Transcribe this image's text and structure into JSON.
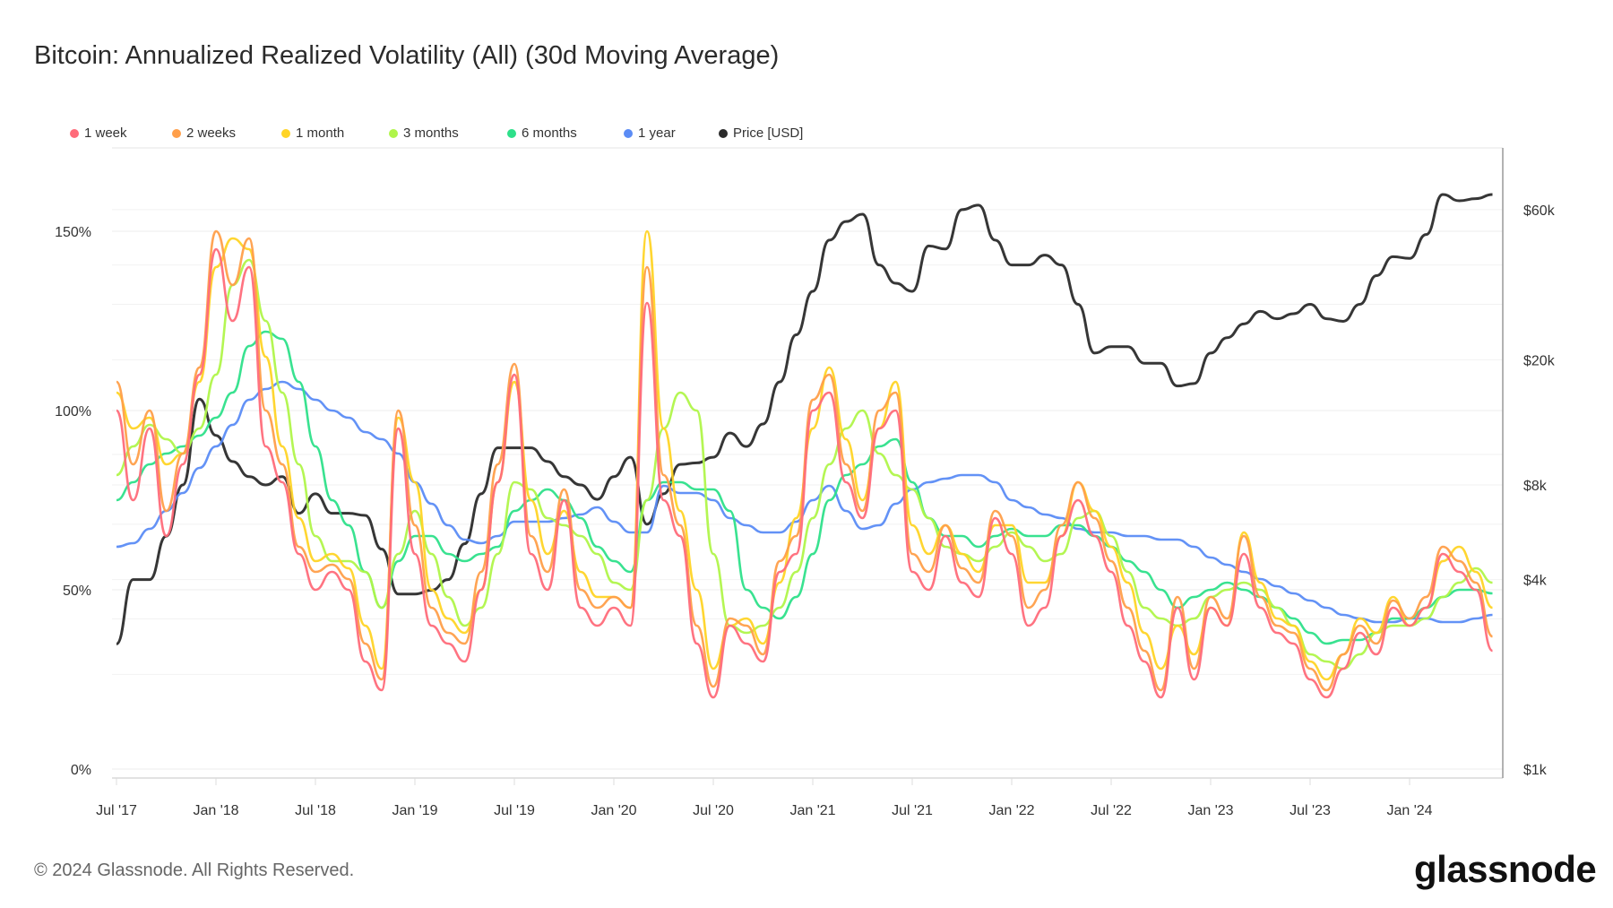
{
  "title": "Bitcoin: Annualized Realized Volatility (All) (30d Moving Average)",
  "footer": "© 2024 Glassnode. All Rights Reserved.",
  "logo": "glassnode",
  "chart_data": {
    "type": "line",
    "title": "Bitcoin: Annualized Realized Volatility (All) (30d Moving Average)",
    "legend_placement": "top-left",
    "grid": true,
    "x_tick_labels": [
      "Jul '17",
      "Jan '18",
      "Jul '18",
      "Jan '19",
      "Jul '19",
      "Jan '20",
      "Jul '20",
      "Jan '21",
      "Jul '21",
      "Jan '22",
      "Jul '22",
      "Jan '23",
      "Jul '23",
      "Jan '24"
    ],
    "y_left": {
      "ticks": [
        0,
        50,
        100,
        150
      ],
      "tick_labels": [
        "0%",
        "50%",
        "100%",
        "150%"
      ],
      "range": [
        0,
        165
      ]
    },
    "y_right": {
      "scale": "log",
      "ticks": [
        1000,
        4000,
        8000,
        20000,
        60000
      ],
      "tick_labels": [
        "$1k",
        "$4k",
        "$8k",
        "$20k",
        "$60k"
      ],
      "range": [
        1000,
        80000
      ]
    },
    "x": [
      "2017-07",
      "2017-08",
      "2017-09",
      "2017-10",
      "2017-11",
      "2017-12",
      "2018-01",
      "2018-02",
      "2018-03",
      "2018-04",
      "2018-05",
      "2018-06",
      "2018-07",
      "2018-08",
      "2018-09",
      "2018-10",
      "2018-11",
      "2018-12",
      "2019-01",
      "2019-02",
      "2019-03",
      "2019-04",
      "2019-05",
      "2019-06",
      "2019-07",
      "2019-08",
      "2019-09",
      "2019-10",
      "2019-11",
      "2019-12",
      "2020-01",
      "2020-02",
      "2020-03",
      "2020-04",
      "2020-05",
      "2020-06",
      "2020-07",
      "2020-08",
      "2020-09",
      "2020-10",
      "2020-11",
      "2020-12",
      "2021-01",
      "2021-02",
      "2021-03",
      "2021-04",
      "2021-05",
      "2021-06",
      "2021-07",
      "2021-08",
      "2021-09",
      "2021-10",
      "2021-11",
      "2021-12",
      "2022-01",
      "2022-02",
      "2022-03",
      "2022-04",
      "2022-05",
      "2022-06",
      "2022-07",
      "2022-08",
      "2022-09",
      "2022-10",
      "2022-11",
      "2022-12",
      "2023-01",
      "2023-02",
      "2023-03",
      "2023-04",
      "2023-05",
      "2023-06",
      "2023-07",
      "2023-08",
      "2023-09",
      "2023-10",
      "2023-11",
      "2023-12",
      "2024-01",
      "2024-02",
      "2024-03",
      "2024-04",
      "2024-05",
      "2024-06"
    ],
    "series": [
      {
        "name": "1 week",
        "color": "#ff6b7a",
        "axis": "left",
        "values": [
          100,
          75,
          95,
          65,
          85,
          110,
          145,
          125,
          140,
          90,
          80,
          60,
          50,
          55,
          50,
          30,
          22,
          95,
          60,
          40,
          35,
          30,
          50,
          80,
          110,
          60,
          50,
          75,
          45,
          40,
          45,
          40,
          130,
          75,
          65,
          35,
          20,
          40,
          35,
          30,
          55,
          60,
          100,
          105,
          80,
          70,
          95,
          100,
          55,
          50,
          65,
          52,
          48,
          70,
          60,
          40,
          45,
          65,
          75,
          65,
          55,
          40,
          30,
          20,
          45,
          25,
          45,
          40,
          60,
          45,
          38,
          35,
          25,
          20,
          28,
          38,
          32,
          45,
          40,
          45,
          60,
          55,
          50,
          33
        ]
      },
      {
        "name": "2 weeks",
        "color": "#ff9f4a",
        "axis": "left",
        "values": [
          108,
          85,
          100,
          72,
          88,
          112,
          150,
          135,
          148,
          100,
          85,
          62,
          55,
          57,
          53,
          35,
          25,
          100,
          68,
          45,
          38,
          35,
          55,
          85,
          113,
          65,
          55,
          78,
          50,
          45,
          48,
          45,
          140,
          82,
          68,
          40,
          23,
          42,
          40,
          32,
          58,
          65,
          103,
          110,
          85,
          72,
          100,
          105,
          60,
          55,
          68,
          56,
          52,
          72,
          65,
          45,
          50,
          68,
          80,
          70,
          58,
          45,
          33,
          22,
          48,
          28,
          48,
          42,
          65,
          48,
          40,
          38,
          28,
          22,
          32,
          40,
          35,
          47,
          42,
          48,
          62,
          58,
          52,
          37
        ]
      },
      {
        "name": "1 month",
        "color": "#ffd426",
        "axis": "left",
        "values": [
          105,
          95,
          98,
          85,
          88,
          108,
          140,
          148,
          145,
          115,
          90,
          70,
          58,
          60,
          56,
          40,
          28,
          98,
          80,
          50,
          42,
          38,
          50,
          80,
          108,
          75,
          60,
          72,
          55,
          48,
          48,
          45,
          150,
          95,
          72,
          50,
          28,
          40,
          42,
          35,
          52,
          70,
          95,
          112,
          92,
          75,
          95,
          108,
          68,
          60,
          68,
          60,
          55,
          68,
          68,
          52,
          52,
          65,
          80,
          72,
          62,
          52,
          38,
          28,
          40,
          32,
          45,
          40,
          66,
          52,
          42,
          40,
          30,
          25,
          32,
          42,
          38,
          48,
          40,
          45,
          58,
          62,
          55,
          45
        ]
      },
      {
        "name": "3 months",
        "color": "#b0f54a",
        "axis": "left",
        "values": [
          82,
          90,
          96,
          92,
          88,
          95,
          110,
          135,
          142,
          125,
          105,
          85,
          65,
          58,
          58,
          55,
          45,
          60,
          72,
          60,
          48,
          40,
          45,
          60,
          80,
          78,
          70,
          68,
          65,
          60,
          52,
          50,
          75,
          95,
          105,
          100,
          60,
          40,
          38,
          40,
          45,
          55,
          70,
          85,
          95,
          100,
          88,
          82,
          78,
          70,
          62,
          60,
          58,
          62,
          66,
          62,
          58,
          60,
          70,
          72,
          65,
          55,
          45,
          42,
          40,
          42,
          48,
          50,
          52,
          50,
          45,
          40,
          32,
          30,
          28,
          32,
          38,
          40,
          40,
          42,
          48,
          52,
          56,
          52
        ]
      },
      {
        "name": "6 months",
        "color": "#2ee08a",
        "axis": "left",
        "values": [
          75,
          80,
          85,
          88,
          90,
          93,
          98,
          105,
          118,
          122,
          120,
          108,
          90,
          75,
          68,
          55,
          45,
          58,
          65,
          65,
          60,
          58,
          60,
          62,
          72,
          75,
          78,
          75,
          70,
          62,
          58,
          55,
          75,
          80,
          80,
          78,
          78,
          72,
          50,
          45,
          42,
          48,
          60,
          75,
          82,
          85,
          90,
          92,
          80,
          70,
          65,
          65,
          62,
          65,
          67,
          65,
          65,
          68,
          68,
          65,
          62,
          58,
          55,
          50,
          45,
          48,
          50,
          52,
          50,
          48,
          45,
          42,
          38,
          35,
          36,
          36,
          38,
          42,
          42,
          45,
          48,
          50,
          50,
          49
        ]
      },
      {
        "name": "1 year",
        "color": "#5b8cf5",
        "axis": "left",
        "values": [
          62,
          63,
          67,
          72,
          77,
          84,
          90,
          96,
          103,
          106,
          108,
          106,
          103,
          100,
          98,
          94,
          92,
          88,
          80,
          74,
          68,
          64,
          63,
          65,
          69,
          69,
          69,
          70,
          71,
          73,
          69,
          66,
          66,
          79,
          77,
          77,
          75,
          70,
          68,
          66,
          66,
          69,
          75,
          79,
          72,
          67,
          68,
          74,
          78,
          80,
          81,
          82,
          82,
          80,
          75,
          73,
          71,
          70,
          67,
          66,
          66,
          65,
          65,
          64,
          64,
          62,
          59,
          57,
          55,
          53,
          51,
          49,
          47,
          45,
          43,
          42,
          41,
          41,
          42,
          42,
          41,
          41,
          42,
          43
        ]
      },
      {
        "name": "Price [USD]",
        "color": "#2b2b2b",
        "axis": "right",
        "values": [
          2500,
          4000,
          4000,
          5500,
          8000,
          15000,
          11500,
          9500,
          8500,
          8000,
          8500,
          6500,
          7500,
          6500,
          6500,
          6400,
          5000,
          3600,
          3600,
          3700,
          4000,
          5200,
          7500,
          10500,
          10500,
          10500,
          9500,
          8500,
          8000,
          7200,
          8500,
          9800,
          6000,
          7500,
          9300,
          9400,
          9800,
          11700,
          10600,
          12500,
          17000,
          24000,
          33000,
          48000,
          55000,
          58000,
          40000,
          35000,
          33000,
          46000,
          45000,
          60000,
          62000,
          48000,
          40000,
          40000,
          43000,
          40000,
          30000,
          21000,
          22000,
          22000,
          19500,
          19500,
          16500,
          16800,
          21000,
          23500,
          26000,
          28500,
          27000,
          28000,
          30000,
          27000,
          26500,
          30000,
          37000,
          42500,
          42000,
          50000,
          67000,
          64000,
          65000,
          67000
        ]
      }
    ]
  }
}
